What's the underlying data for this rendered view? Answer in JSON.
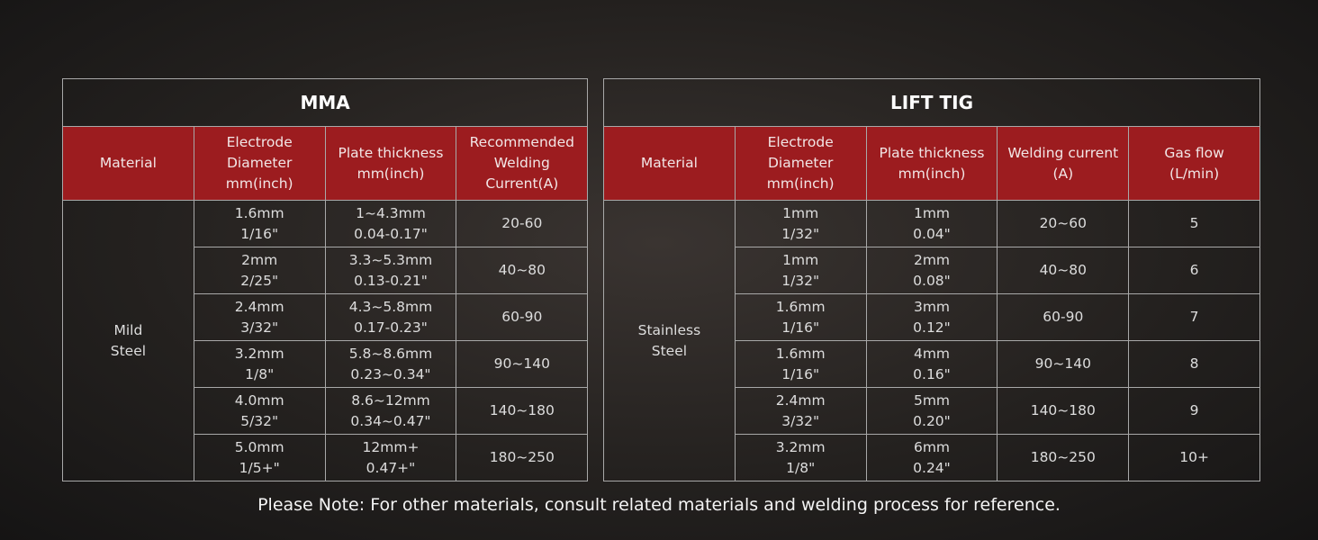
{
  "tables": [
    {
      "title": "MMA",
      "headers": [
        "Material",
        "Electrode\nDiameter\nmm(inch)",
        "Plate thickness\nmm(inch)",
        "Recommended\nWelding\nCurrent(A)"
      ],
      "material": "Mild\nSteel",
      "rows": [
        [
          "1.6mm\n1/16\"",
          "1~4.3mm\n0.04-0.17\"",
          "20-60"
        ],
        [
          "2mm\n2/25\"",
          "3.3~5.3mm\n0.13-0.21\"",
          "40~80"
        ],
        [
          "2.4mm\n3/32\"",
          "4.3~5.8mm\n0.17-0.23\"",
          "60-90"
        ],
        [
          "3.2mm\n1/8\"",
          "5.8~8.6mm\n0.23~0.34\"",
          "90~140"
        ],
        [
          "4.0mm\n5/32\"",
          "8.6~12mm\n0.34~0.47\"",
          "140~180"
        ],
        [
          "5.0mm\n1/5+\"",
          "12mm+\n0.47+\"",
          "180~250"
        ]
      ]
    },
    {
      "title": "LIFT TIG",
      "headers": [
        "Material",
        "Electrode\nDiameter\nmm(inch)",
        "Plate thickness\nmm(inch)",
        "Welding current\n(A)",
        "Gas flow\n(L/min)"
      ],
      "material": "Stainless\nSteel",
      "rows": [
        [
          "1mm\n1/32\"",
          "1mm\n0.04\"",
          "20~60",
          "5"
        ],
        [
          "1mm\n1/32\"",
          "2mm\n0.08\"",
          "40~80",
          "6"
        ],
        [
          "1.6mm\n1/16\"",
          "3mm\n0.12\"",
          "60-90",
          "7"
        ],
        [
          "1.6mm\n1/16\"",
          "4mm\n0.16\"",
          "90~140",
          "8"
        ],
        [
          "2.4mm\n3/32\"",
          "5mm\n0.20\"",
          "140~180",
          "9"
        ],
        [
          "3.2mm\n1/8\"",
          "6mm\n0.24\"",
          "180~250",
          "10+"
        ]
      ]
    }
  ],
  "note": "Please Note: For other materials, consult related materials and welding process for reference."
}
